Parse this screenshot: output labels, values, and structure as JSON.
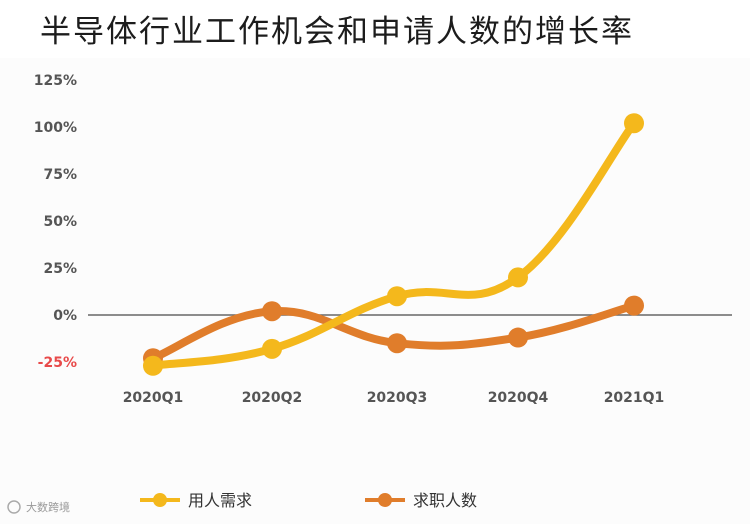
{
  "title": "半导体行业工作机会和申请人数的增长率",
  "watermark": "大数跨境",
  "chart_data": {
    "type": "line",
    "title": "半导体行业工作机会和申请人数的增长率",
    "xlabel": "",
    "ylabel": "",
    "categories": [
      "2020Q1",
      "2020Q2",
      "2020Q3",
      "2020Q4",
      "2021Q1"
    ],
    "yticks": [
      -25,
      0,
      25,
      50,
      75,
      100,
      125
    ],
    "ytick_labels": [
      "-25%",
      "0%",
      "25%",
      "50%",
      "75%",
      "100%",
      "125%"
    ],
    "ylim": [
      -25,
      125
    ],
    "grid": false,
    "legend_position": "bottom",
    "series": [
      {
        "name": "用人需求",
        "color": "#f4b81c",
        "values": [
          -27,
          -18,
          10,
          20,
          102
        ]
      },
      {
        "name": "求职人数",
        "color": "#e07d2b",
        "values": [
          -23,
          2,
          -15,
          -12,
          5
        ]
      }
    ]
  }
}
